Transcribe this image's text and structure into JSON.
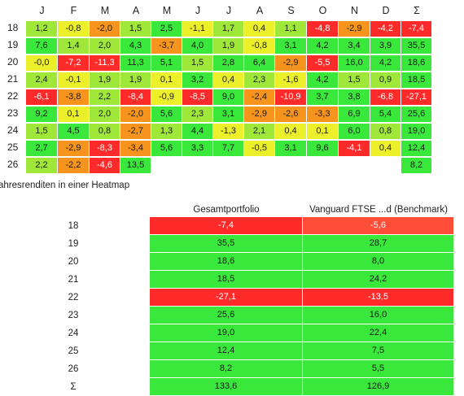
{
  "chart_data": [
    {
      "type": "heatmap",
      "columns": [
        "J",
        "F",
        "M",
        "A",
        "M",
        "J",
        "J",
        "A",
        "S",
        "O",
        "N",
        "D",
        "Σ"
      ],
      "rows": [
        {
          "label": "18",
          "values": [
            "1,2",
            "-0,8",
            "-2,0",
            "1,5",
            "2,5",
            "-1,1",
            "1,7",
            "0,4",
            "1,1",
            "-4,8",
            "-2,9",
            "-4,2",
            "-7,4"
          ]
        },
        {
          "label": "19",
          "values": [
            "7,6",
            "1,4",
            "2,0",
            "4,3",
            "-3,7",
            "4,0",
            "1,9",
            "-0,8",
            "3,1",
            "4,2",
            "3,4",
            "3,9",
            "35,5"
          ]
        },
        {
          "label": "20",
          "values": [
            "-0,0",
            "-7,2",
            "-11,3",
            "11,3",
            "5,1",
            "1,5",
            "2,8",
            "6,4",
            "-2,9",
            "-5,5",
            "16,0",
            "4,2",
            "18,6"
          ]
        },
        {
          "label": "21",
          "values": [
            "2,4",
            "-0,1",
            "1,9",
            "1,9",
            "0,1",
            "3,2",
            "0,4",
            "2,3",
            "-1,6",
            "4,2",
            "1,5",
            "0,9",
            "18,5"
          ]
        },
        {
          "label": "22",
          "values": [
            "-6,1",
            "-3,8",
            "2,2",
            "-8,4",
            "-0,9",
            "-8,5",
            "9,0",
            "-2,4",
            "-10,9",
            "3,7",
            "3,8",
            "-6,8",
            "-27,1"
          ]
        },
        {
          "label": "23",
          "values": [
            "9,2",
            "0,1",
            "2,0",
            "-2,0",
            "5,6",
            "2,3",
            "3,1",
            "-2,9",
            "-2,6",
            "-3,3",
            "6,9",
            "5,4",
            "25,6"
          ]
        },
        {
          "label": "24",
          "values": [
            "1,5",
            "4,5",
            "0,8",
            "-2,7",
            "1,3",
            "4,4",
            "-1,3",
            "2,1",
            "0,4",
            "0,1",
            "6,0",
            "0,8",
            "19,0"
          ]
        },
        {
          "label": "25",
          "values": [
            "2,7",
            "-2,9",
            "-8,3",
            "-3,4",
            "5,6",
            "3,3",
            "7,7",
            "-0,5",
            "3,1",
            "9,6",
            "-4,1",
            "0,4",
            "12,4"
          ]
        },
        {
          "label": "26",
          "values": [
            "2,2",
            "-2,2",
            "-4,6",
            "13,5",
            "",
            "",
            "",
            "",
            "",
            "",
            "",
            "",
            "8,2"
          ]
        }
      ]
    },
    {
      "type": "table",
      "title": "ahresrenditen in einer Heatmap",
      "columns": [
        "Gesamtportfolio",
        "Vanguard FTSE ...d  (Benchmark)"
      ],
      "rows": [
        {
          "label": "18",
          "values": [
            "-7,4",
            "-5,6"
          ]
        },
        {
          "label": "19",
          "values": [
            "35,5",
            "28,7"
          ]
        },
        {
          "label": "20",
          "values": [
            "18,6",
            "8,0"
          ]
        },
        {
          "label": "21",
          "values": [
            "18,5",
            "24,2"
          ]
        },
        {
          "label": "22",
          "values": [
            "-27,1",
            "-13,5"
          ]
        },
        {
          "label": "23",
          "values": [
            "25,6",
            "16,0"
          ]
        },
        {
          "label": "24",
          "values": [
            "19,0",
            "22,4"
          ]
        },
        {
          "label": "25",
          "values": [
            "12,4",
            "7,5"
          ]
        },
        {
          "label": "26",
          "values": [
            "8,2",
            "5,5"
          ]
        },
        {
          "label": "Σ",
          "values": [
            "133,6",
            "126,9"
          ]
        }
      ]
    }
  ],
  "colors": {
    "strong_red": "#ff2a2a",
    "red": "#ff4d38",
    "orange": "#f7941d",
    "yellow": "#ecf02a",
    "lime": "#9fe83a",
    "green": "#39e83a"
  }
}
